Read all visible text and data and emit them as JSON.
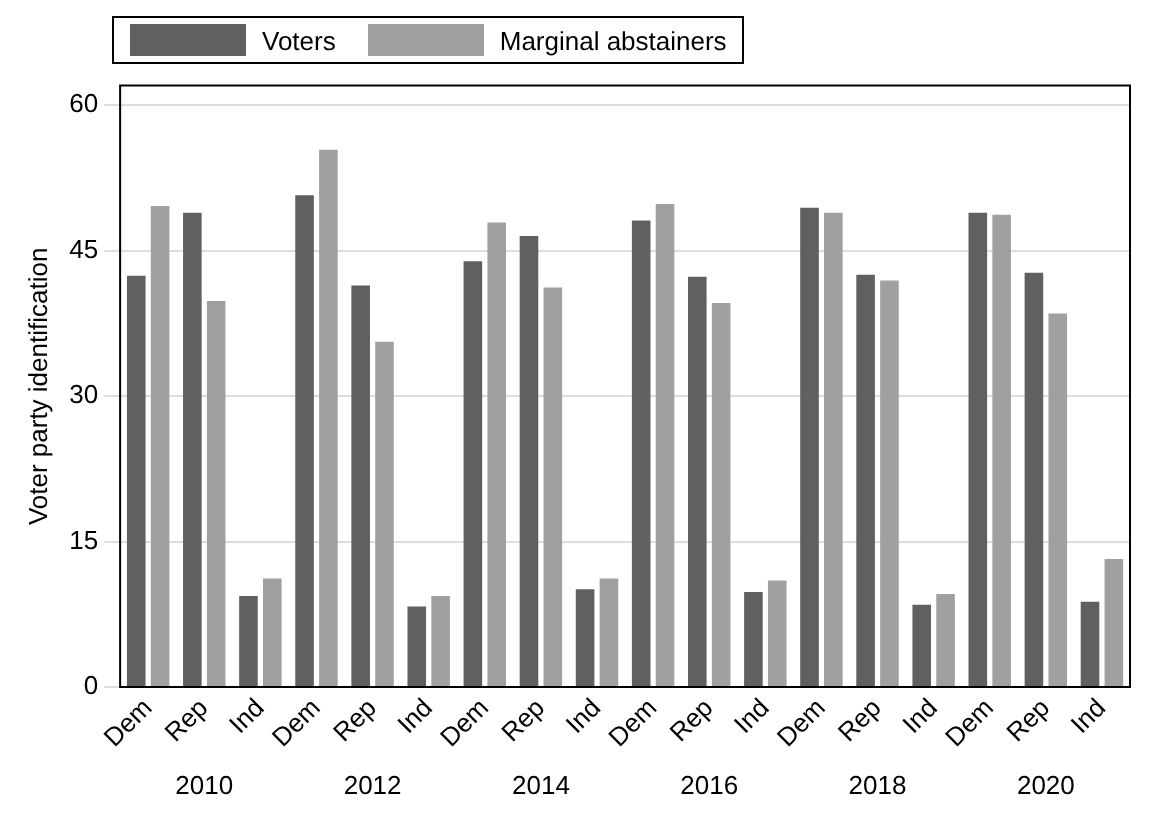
{
  "chart_data": {
    "type": "bar",
    "ylabel": "Voter party identification",
    "categories": [
      "Dem",
      "Rep",
      "Ind",
      "Dem",
      "Rep",
      "Ind",
      "Dem",
      "Rep",
      "Ind",
      "Dem",
      "Rep",
      "Ind",
      "Dem",
      "Rep",
      "Ind",
      "Dem",
      "Rep",
      "Ind"
    ],
    "series": [
      {
        "name": "Voters",
        "color": "#606060",
        "values": [
          42.4,
          48.9,
          9.4,
          50.7,
          41.4,
          8.3,
          43.9,
          46.5,
          10.1,
          48.1,
          42.3,
          9.8,
          49.4,
          42.5,
          8.5,
          48.9,
          42.7,
          8.8
        ]
      },
      {
        "name": "Marginal abstainers",
        "color": "#a0a0a0",
        "values": [
          49.6,
          39.8,
          11.2,
          55.4,
          35.6,
          9.4,
          47.9,
          41.2,
          11.2,
          49.8,
          39.6,
          11.0,
          48.9,
          41.9,
          9.6,
          48.7,
          38.5,
          13.2
        ]
      }
    ],
    "annotations": [
      "2010",
      "2012",
      "2014",
      "2016",
      "2018",
      "2020"
    ],
    "ylim": [
      0,
      62
    ],
    "yticks": [
      0,
      15,
      30,
      45,
      60
    ],
    "grid": "y",
    "legend": "top left"
  }
}
